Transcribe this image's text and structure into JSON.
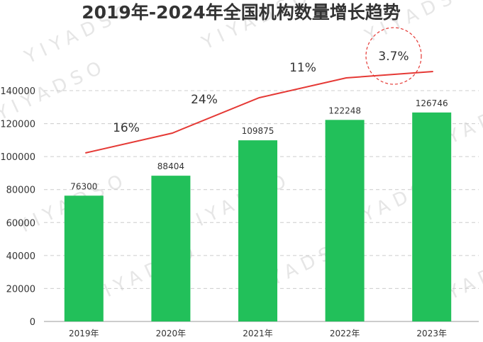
{
  "chart_data": {
    "type": "bar",
    "title": "2019年-2024年全国机构数量增长趋势",
    "categories": [
      "2019年",
      "2020年",
      "2021年",
      "2022年",
      "2023年"
    ],
    "values": [
      76300,
      88404,
      109875,
      122248,
      126746
    ],
    "ylim": [
      0,
      140000
    ],
    "yticks": [
      0,
      20000,
      40000,
      60000,
      80000,
      100000,
      120000,
      140000
    ],
    "grid": true,
    "trend_line": {
      "growth_labels": [
        "16%",
        "24%",
        "11%",
        "3.7%"
      ],
      "highlighted_label": "3.7%"
    },
    "colors": {
      "bar": "#22c05a",
      "line": "#e53935",
      "grid": "#cccccc"
    }
  },
  "watermark": "YIYADSO"
}
